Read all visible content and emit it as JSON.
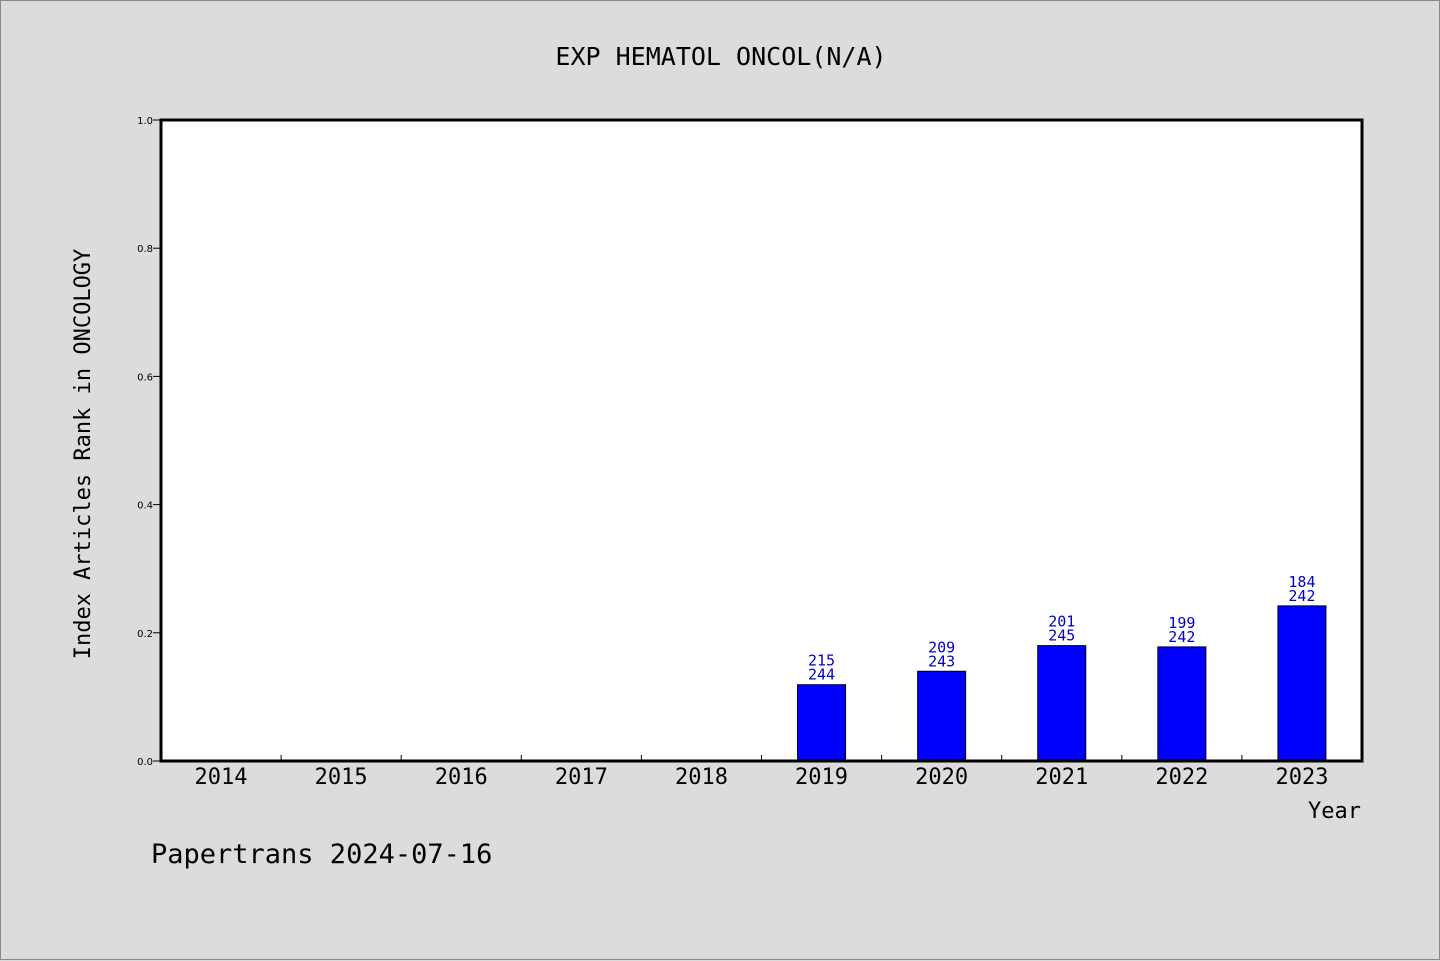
{
  "chart_data": {
    "type": "bar",
    "title": "EXP HEMATOL ONCOL(N/A)",
    "xlabel": "Year",
    "ylabel": "Index Articles Rank in ONCOLOGY",
    "categories": [
      "2014",
      "2015",
      "2016",
      "2017",
      "2018",
      "2019",
      "2020",
      "2021",
      "2022",
      "2023"
    ],
    "values": [
      null,
      null,
      null,
      null,
      null,
      0.119,
      0.14,
      0.18,
      0.178,
      0.242
    ],
    "bar_labels": [
      null,
      null,
      null,
      null,
      null,
      {
        "rank": "215",
        "total": "244"
      },
      {
        "rank": "209",
        "total": "243"
      },
      {
        "rank": "201",
        "total": "245"
      },
      {
        "rank": "199",
        "total": "242"
      },
      {
        "rank": "184",
        "total": "242"
      }
    ],
    "ylim": [
      0,
      1.0
    ],
    "yticks": [
      "0.0",
      "0.2",
      "0.4",
      "0.6",
      "0.8",
      "1.0"
    ],
    "grid": false,
    "bar_color": "#0000ff",
    "label_color": "#0000cc",
    "footer": "Papertrans 2024-07-16"
  }
}
